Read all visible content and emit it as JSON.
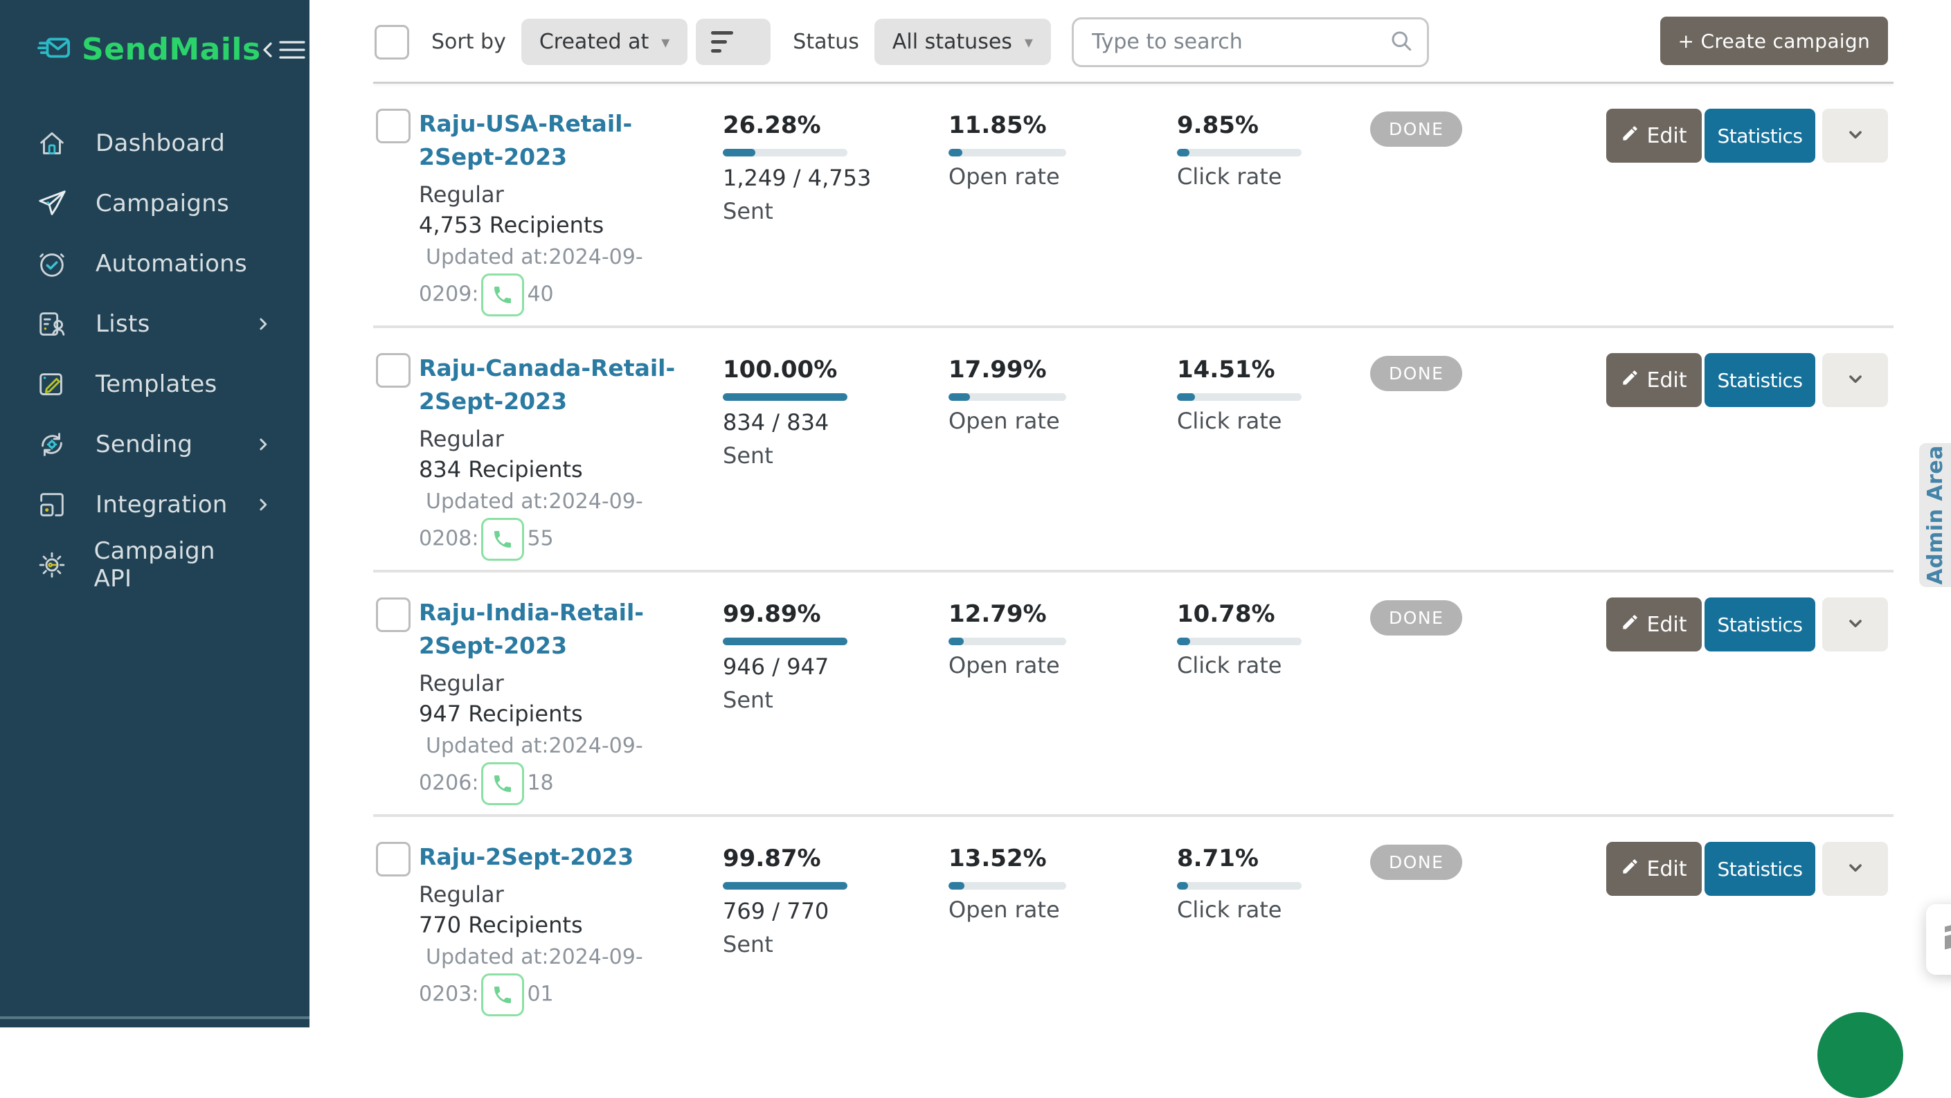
{
  "sidebar": {
    "logo_text": "SendMails",
    "items": [
      {
        "label": "Dashboard",
        "icon": "home",
        "has_chevron": false
      },
      {
        "label": "Campaigns",
        "icon": "paper-plane",
        "has_chevron": false
      },
      {
        "label": "Automations",
        "icon": "alarm-clock",
        "has_chevron": false
      },
      {
        "label": "Lists",
        "icon": "list-person",
        "has_chevron": true
      },
      {
        "label": "Templates",
        "icon": "pen-square",
        "has_chevron": false
      },
      {
        "label": "Sending",
        "icon": "sync-gear",
        "has_chevron": true
      },
      {
        "label": "Integration",
        "icon": "integration",
        "has_chevron": true
      },
      {
        "label": "Campaign API",
        "icon": "gear-key",
        "has_chevron": false
      }
    ]
  },
  "toolbar": {
    "sort_by_label": "Sort by",
    "sort_dropdown_value": "Created at",
    "status_label": "Status",
    "status_dropdown_value": "All statuses",
    "search_placeholder": "Type to search",
    "create_button_label": "+ Create campaign"
  },
  "labels": {
    "sent": "Sent",
    "open_rate": "Open rate",
    "click_rate": "Click rate"
  },
  "actions": {
    "edit": "Edit",
    "statistics": "Statistics"
  },
  "admin_area_label": "Admin Area",
  "campaigns": [
    {
      "name": "Raju-USA-Retail-2Sept-2023",
      "type": "Regular",
      "recipients": "4,753 Recipients",
      "updated_line1": "Updated at:2024-09-",
      "updated_line2_prefix": "0209:",
      "updated_line2_suffix": "40",
      "sent_pct": "26.28%",
      "sent_pct_value": 26.28,
      "sent_fraction": "1,249 / 4,753",
      "open_pct": "11.85%",
      "open_pct_value": 11.85,
      "click_pct": "9.85%",
      "click_pct_value": 9.85,
      "status": "DONE"
    },
    {
      "name": "Raju-Canada-Retail-2Sept-2023",
      "type": "Regular",
      "recipients": "834 Recipients",
      "updated_line1": "Updated at:2024-09-",
      "updated_line2_prefix": "0208:",
      "updated_line2_suffix": "55",
      "sent_pct": "100.00%",
      "sent_pct_value": 100,
      "sent_fraction": "834 / 834",
      "open_pct": "17.99%",
      "open_pct_value": 17.99,
      "click_pct": "14.51%",
      "click_pct_value": 14.51,
      "status": "DONE"
    },
    {
      "name": "Raju-India-Retail-2Sept-2023",
      "type": "Regular",
      "recipients": "947 Recipients",
      "updated_line1": "Updated at:2024-09-",
      "updated_line2_prefix": "0206:",
      "updated_line2_suffix": "18",
      "sent_pct": "99.89%",
      "sent_pct_value": 99.89,
      "sent_fraction": "946 / 947",
      "open_pct": "12.79%",
      "open_pct_value": 12.79,
      "click_pct": "10.78%",
      "click_pct_value": 10.78,
      "status": "DONE"
    },
    {
      "name": "Raju-2Sept-2023",
      "type": "Regular",
      "recipients": "770 Recipients",
      "updated_line1": "Updated at:2024-09-",
      "updated_line2_prefix": "0203:",
      "updated_line2_suffix": "01",
      "sent_pct": "99.87%",
      "sent_pct_value": 99.87,
      "sent_fraction": "769 / 770",
      "open_pct": "13.52%",
      "open_pct_value": 13.52,
      "click_pct": "8.71%",
      "click_pct_value": 8.71,
      "status": "DONE"
    }
  ],
  "colors": {
    "sidebar_bg": "#204254",
    "logo_green": "#2bd36a",
    "link_teal": "#2a7aa2",
    "progress_fill": "#2e7da0",
    "statistics_button": "#15709a",
    "edit_button": "#6e675f",
    "done_badge": "#b3b3b3",
    "phone_green": "#6fd392",
    "chat_bubble_green": "#11894f",
    "admin_tab_text": "#4584a8"
  }
}
